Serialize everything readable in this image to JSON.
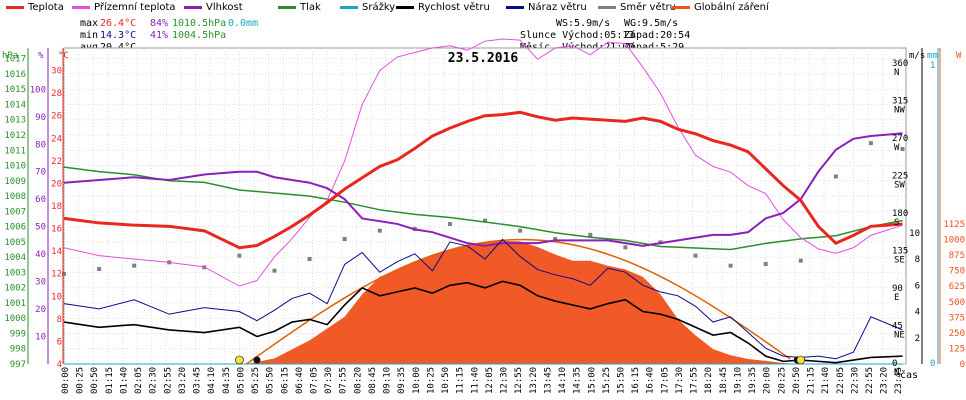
{
  "legend": [
    {
      "label": "Teplota",
      "color": "#e8271f"
    },
    {
      "label": "Přízemní teplota",
      "color": "#e04fe0"
    },
    {
      "label": "Vlhkost",
      "color": "#8b1fb8"
    },
    {
      "label": "Tlak",
      "color": "#2a8f2a"
    },
    {
      "label": "Srážky",
      "color": "#1ba4c8"
    },
    {
      "label": "Rychlost větru",
      "color": "#000000"
    },
    {
      "label": "Náraz větru",
      "color": "#0a0a8c"
    },
    {
      "label": "Směr větru",
      "color": "#808080"
    },
    {
      "label": "Globální záření",
      "color": "#f0501a"
    }
  ],
  "stats": {
    "max_label": "max",
    "min_label": "min",
    "avg_label": "avg",
    "max_temp": "26.4°C",
    "max_hum": "84%",
    "max_press": "1010.5hPa",
    "max_rain": "0.0mm",
    "min_temp": "14.3°C",
    "min_hum": "41%",
    "min_press": "1004.5hPa",
    "avg_temp": "20.4°C",
    "ws": "WS:5.9m/s",
    "wg": "WG:9.5m/s",
    "sun_line": "Slunce Východ:05:13",
    "sun_set": "Západ:20:54",
    "moon_line": "Měsíc  Východ:21:00",
    "moon_set": "Západ:5:29"
  },
  "chart_data": {
    "type": "line",
    "title": "23.5.2016",
    "xlabel": "čas",
    "x_ticks": [
      "00:00",
      "00:25",
      "00:50",
      "01:15",
      "01:40",
      "02:05",
      "02:30",
      "02:55",
      "03:20",
      "03:45",
      "04:10",
      "04:35",
      "05:00",
      "05:25",
      "05:50",
      "06:15",
      "06:40",
      "07:05",
      "07:30",
      "07:55",
      "08:20",
      "08:45",
      "09:10",
      "09:35",
      "10:00",
      "10:25",
      "10:50",
      "11:15",
      "11:40",
      "12:05",
      "12:30",
      "12:55",
      "13:20",
      "13:45",
      "14:10",
      "14:35",
      "15:00",
      "15:25",
      "15:50",
      "16:15",
      "16:40",
      "17:05",
      "17:30",
      "17:55",
      "18:20",
      "18:45",
      "19:10",
      "19:35",
      "20:00",
      "20:25",
      "20:50",
      "21:15",
      "21:40",
      "22:05",
      "22:30",
      "22:55",
      "23:20",
      "23:45"
    ],
    "axes": {
      "hPa": {
        "label": "hPa",
        "ticks": [
          997,
          998,
          999,
          1000,
          1001,
          1002,
          1003,
          1004,
          1005,
          1006,
          1007,
          1008,
          1009,
          1010,
          1011,
          1012,
          1013,
          1014,
          1015,
          1016,
          1017
        ],
        "color": "#2a8f2a"
      },
      "pct": {
        "label": "%",
        "ticks": [
          10,
          20,
          30,
          40,
          50,
          60,
          70,
          80,
          90,
          100
        ],
        "color": "#8b1fb8"
      },
      "degC": {
        "label": "°C",
        "ticks": [
          4,
          6,
          8,
          10,
          12,
          14,
          16,
          18,
          20,
          22,
          24,
          26,
          28,
          30
        ],
        "color": "#e8271f"
      },
      "dir": {
        "ticks": [
          "360 N",
          "315 NW",
          "270 W",
          "225 SW",
          "180 S",
          "135 SE",
          "90 E",
          "45 NE",
          "0 N"
        ],
        "color": "#000"
      },
      "ms": {
        "label": "m/s",
        "ticks": [
          2,
          4,
          6,
          8,
          10
        ],
        "color": "#000"
      },
      "mm": {
        "label": "mm",
        "ticks": [
          0,
          1
        ],
        "color": "#1ba4c8"
      },
      "W": {
        "label": "W",
        "ticks": [
          0,
          125,
          250,
          375,
          500,
          625,
          750,
          875,
          1000,
          1125
        ],
        "color": "#f0501a"
      }
    },
    "series": [
      {
        "name": "Teplota",
        "unit": "°C",
        "color": "#e8271f",
        "x": [
          0,
          1,
          2,
          3,
          4,
          5,
          5.5,
          6,
          6.5,
          7,
          7.5,
          8,
          8.5,
          9,
          9.5,
          10,
          10.5,
          11,
          11.5,
          12,
          12.5,
          13,
          13.5,
          14,
          14.5,
          15,
          15.5,
          16,
          16.5,
          17,
          17.5,
          18,
          18.5,
          19,
          19.5,
          20,
          20.5,
          21,
          21.5,
          22,
          22.5,
          23,
          23.9
        ],
        "y": [
          16.9,
          16.5,
          16.3,
          16.2,
          15.8,
          14.3,
          14.5,
          15.3,
          16.2,
          17.2,
          18.3,
          19.5,
          20.5,
          21.5,
          22.1,
          23.1,
          24.2,
          24.9,
          25.5,
          26.0,
          26.1,
          26.3,
          25.9,
          25.6,
          25.8,
          25.7,
          25.6,
          25.5,
          25.8,
          25.5,
          24.8,
          24.4,
          23.8,
          23.4,
          22.8,
          21.3,
          19.8,
          18.5,
          16.2,
          14.7,
          15.4,
          16.2,
          16.4
        ]
      },
      {
        "name": "Přízemní teplota",
        "unit": "°C",
        "color": "#e04fe0",
        "x": [
          0,
          1,
          2,
          3,
          4,
          5,
          5.5,
          6,
          6.5,
          7,
          7.5,
          8,
          8.5,
          9,
          9.5,
          10,
          10.5,
          11,
          11.5,
          12,
          12.5,
          13,
          13.5,
          14,
          14.5,
          15,
          15.5,
          16,
          16.5,
          17,
          17.5,
          18,
          18.5,
          19,
          19.5,
          20,
          20.5,
          21,
          21.5,
          22,
          22.5,
          23,
          23.9
        ],
        "y": [
          14.3,
          13.6,
          13.3,
          13.0,
          12.6,
          10.9,
          11.4,
          13.5,
          15.1,
          17.0,
          18.5,
          22.0,
          27.0,
          30.0,
          31.2,
          31.6,
          32.0,
          32.2,
          31.8,
          32.6,
          32.8,
          32.7,
          31.0,
          32.0,
          32.2,
          31.4,
          32.5,
          32.4,
          30.3,
          28.0,
          25.0,
          22.5,
          21.5,
          21.0,
          19.8,
          19.1,
          16.8,
          15.2,
          14.2,
          13.8,
          14.3,
          15.4,
          16.3
        ]
      },
      {
        "name": "Vlhkost",
        "unit": "%",
        "color": "#8b1fb8",
        "x": [
          0,
          1,
          2,
          3,
          4,
          5,
          5.5,
          6,
          6.5,
          7,
          7.5,
          8,
          8.5,
          9,
          9.5,
          10,
          10.5,
          11,
          11.5,
          12,
          12.5,
          13,
          13.5,
          14,
          14.5,
          15,
          15.5,
          16,
          16.5,
          17,
          17.5,
          18,
          18.5,
          19,
          19.5,
          20,
          20.5,
          21,
          21.5,
          22,
          22.5,
          23,
          23.9
        ],
        "y": [
          66,
          67,
          68,
          67,
          69,
          70,
          70,
          68,
          67,
          66,
          64,
          60,
          53,
          52,
          51,
          49,
          48,
          46,
          44,
          43,
          44,
          44,
          44,
          45,
          45,
          45,
          45,
          44,
          43,
          44,
          45,
          46,
          47,
          47,
          48,
          53,
          55,
          60,
          70,
          78,
          82,
          83,
          84
        ]
      },
      {
        "name": "Tlak",
        "unit": "hPa",
        "color": "#2a8f2a",
        "x": [
          0,
          1,
          2,
          3,
          4,
          5,
          6,
          7,
          8,
          9,
          10,
          11,
          12,
          13,
          14,
          15,
          16,
          17,
          18,
          19,
          20,
          21,
          22,
          23,
          23.9
        ],
        "y": [
          1009.9,
          1009.6,
          1009.4,
          1009.0,
          1008.9,
          1008.4,
          1008.2,
          1008.0,
          1007.6,
          1007.1,
          1006.8,
          1006.6,
          1006.3,
          1006.0,
          1005.6,
          1005.3,
          1005.1,
          1004.7,
          1004.6,
          1004.5,
          1004.9,
          1005.2,
          1005.4,
          1006.0,
          1006.4
        ]
      },
      {
        "name": "Rychlost větru",
        "unit": "m/s",
        "color": "#000000",
        "x": [
          0,
          1,
          2,
          3,
          4,
          5,
          5.5,
          6,
          6.5,
          7,
          7.5,
          8,
          8.5,
          9,
          9.5,
          10,
          10.5,
          11,
          11.5,
          12,
          12.5,
          13,
          13.5,
          14,
          14.5,
          15,
          15.5,
          16,
          16.5,
          17,
          17.5,
          18,
          18.5,
          19,
          19.5,
          20,
          20.5,
          21,
          21.5,
          22,
          22.5,
          23,
          23.9
        ],
        "y": [
          3.2,
          2.8,
          3.0,
          2.6,
          2.4,
          2.8,
          2.1,
          2.5,
          3.2,
          3.4,
          3.0,
          4.5,
          5.8,
          5.2,
          5.5,
          5.8,
          5.4,
          6.0,
          6.2,
          5.8,
          6.3,
          6.0,
          5.2,
          4.8,
          4.5,
          4.2,
          4.6,
          4.9,
          4.0,
          3.8,
          3.4,
          2.8,
          2.2,
          2.4,
          1.6,
          0.6,
          0.2,
          0.3,
          0.2,
          0.1,
          0.3,
          0.5,
          0.6
        ]
      },
      {
        "name": "Náraz větru",
        "unit": "m/s",
        "color": "#0a0a8c",
        "x": [
          0,
          1,
          2,
          3,
          4,
          5,
          5.5,
          6,
          6.5,
          7,
          7.5,
          8,
          8.5,
          9,
          9.5,
          10,
          10.5,
          11,
          11.5,
          12,
          12.5,
          13,
          13.5,
          14,
          14.5,
          15,
          15.5,
          16,
          16.5,
          17,
          17.5,
          18,
          18.5,
          19,
          19.5,
          20,
          20.5,
          21,
          21.5,
          22,
          22.5,
          23,
          23.9
        ],
        "y": [
          4.6,
          4.2,
          4.9,
          3.8,
          4.3,
          4.0,
          3.3,
          4.1,
          5.0,
          5.4,
          4.6,
          7.6,
          8.5,
          7.0,
          7.8,
          8.4,
          7.1,
          9.3,
          9.0,
          8.0,
          9.5,
          8.2,
          7.2,
          6.8,
          6.5,
          6.0,
          7.3,
          7.0,
          6.0,
          5.5,
          5.2,
          4.4,
          3.2,
          3.6,
          2.4,
          1.2,
          0.6,
          0.5,
          0.6,
          0.4,
          0.9,
          3.6,
          2.6
        ]
      },
      {
        "name": "Směr větru",
        "unit": "°",
        "color": "#808080",
        "x": [
          0,
          1,
          2,
          3,
          4,
          5,
          6,
          7,
          8,
          9,
          10,
          11,
          12,
          13,
          14,
          15,
          16,
          17,
          18,
          19,
          20,
          21,
          22,
          23,
          23.9
        ],
        "y": [
          108,
          114,
          118,
          122,
          116,
          130,
          112,
          126,
          150,
          160,
          162,
          168,
          172,
          160,
          150,
          155,
          140,
          146,
          130,
          118,
          120,
          124,
          225,
          265,
          258
        ]
      },
      {
        "name": "Globální záření",
        "unit": "W",
        "color": "#f0501a",
        "x": [
          5.2,
          6,
          7,
          8,
          8.5,
          9,
          9.5,
          10,
          10.5,
          11,
          11.5,
          12,
          12.5,
          13,
          13.5,
          14,
          14.5,
          15,
          15.5,
          16,
          16.5,
          17,
          17.5,
          18,
          18.5,
          19,
          19.5,
          20,
          20.5,
          20.9
        ],
        "y": [
          0,
          45,
          190,
          380,
          560,
          700,
          760,
          820,
          880,
          920,
          960,
          980,
          990,
          985,
          940,
          880,
          830,
          830,
          790,
          760,
          700,
          560,
          360,
          230,
          120,
          70,
          40,
          25,
          8,
          0
        ]
      },
      {
        "name": "Srážky",
        "unit": "mm",
        "color": "#1ba4c8",
        "x": [
          0,
          23.9
        ],
        "y": [
          0,
          0
        ]
      }
    ]
  }
}
